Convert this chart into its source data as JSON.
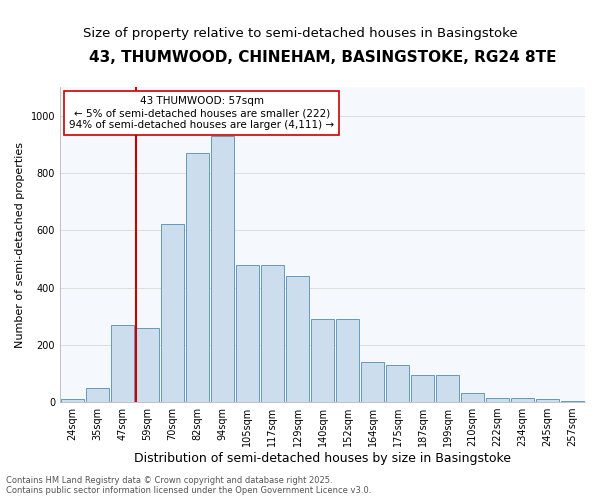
{
  "title": "43, THUMWOOD, CHINEHAM, BASINGSTOKE, RG24 8TE",
  "subtitle": "Size of property relative to semi-detached houses in Basingstoke",
  "xlabel": "Distribution of semi-detached houses by size in Basingstoke",
  "ylabel": "Number of semi-detached properties",
  "footer_line1": "Contains HM Land Registry data © Crown copyright and database right 2025.",
  "footer_line2": "Contains public sector information licensed under the Open Government Licence v3.0.",
  "annotation_title": "43 THUMWOOD: 57sqm",
  "annotation_line1": "← 5% of semi-detached houses are smaller (222)",
  "annotation_line2": "94% of semi-detached houses are larger (4,111) →",
  "bin_labels": [
    "24sqm",
    "35sqm",
    "47sqm",
    "59sqm",
    "70sqm",
    "82sqm",
    "94sqm",
    "105sqm",
    "117sqm",
    "129sqm",
    "140sqm",
    "152sqm",
    "164sqm",
    "175sqm",
    "187sqm",
    "199sqm",
    "210sqm",
    "222sqm",
    "234sqm",
    "245sqm",
    "257sqm"
  ],
  "bar_heights": [
    10,
    50,
    270,
    260,
    620,
    870,
    930,
    480,
    480,
    440,
    290,
    290,
    140,
    130,
    95,
    95,
    30,
    15,
    15,
    10,
    5
  ],
  "bar_color": "#ccdded",
  "bar_edge_color": "#6699bb",
  "redline_color": "#cc0000",
  "annotation_box_edge": "#cc0000",
  "ylim": [
    0,
    1100
  ],
  "yticks": [
    0,
    200,
    400,
    600,
    800,
    1000
  ],
  "grid_color": "#dddddd",
  "bg_color": "#ffffff",
  "plot_bg_color": "#f5f8fc",
  "title_fontsize": 11,
  "subtitle_fontsize": 9.5,
  "xlabel_fontsize": 9,
  "ylabel_fontsize": 8,
  "tick_fontsize": 7,
  "annotation_fontsize": 7.5,
  "redline_bar_index": 3
}
